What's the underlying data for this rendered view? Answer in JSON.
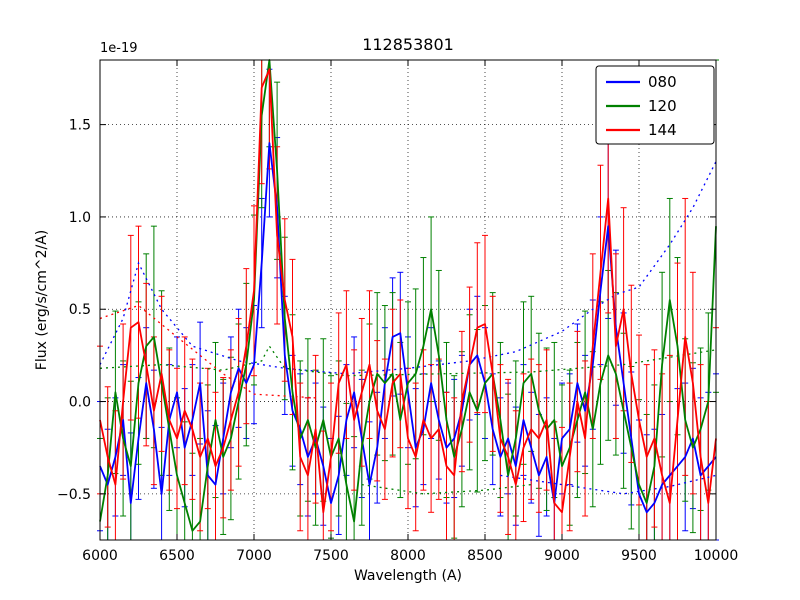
{
  "chart_data": {
    "type": "line",
    "title": "112853801",
    "xlabel": "Wavelength (A)",
    "ylabel": "Flux (erg/s/cm^2/A)",
    "y_offset_text": "1e-19",
    "xlim": [
      6000,
      10000
    ],
    "ylim": [
      -0.75,
      1.85
    ],
    "x_ticks": [
      6000,
      6500,
      7000,
      7500,
      8000,
      8500,
      9000,
      9500,
      10000
    ],
    "y_ticks": [
      -0.5,
      0.0,
      0.5,
      1.0,
      1.5
    ],
    "y_tick_labels": [
      "−0.5",
      "0.0",
      "0.5",
      "1.0",
      "1.5"
    ],
    "grid": true,
    "legend_position": "upper right",
    "x_start": 6000,
    "x_step": 50,
    "series": [
      {
        "name": "080",
        "color": "#0000ff",
        "values": [
          -0.35,
          -0.45,
          -0.3,
          -0.1,
          -0.55,
          -0.2,
          0.1,
          -0.15,
          -0.5,
          -0.1,
          0.05,
          -0.25,
          -0.1,
          0.1,
          -0.4,
          -0.45,
          -0.2,
          0.05,
          0.18,
          0.1,
          0.2,
          0.75,
          1.4,
          1.05,
          0.25,
          -0.05,
          -0.15,
          -0.3,
          -0.2,
          -0.35,
          -0.55,
          -0.4,
          -0.1,
          0.05,
          -0.2,
          -0.45,
          -0.25,
          0.1,
          0.35,
          0.37,
          0.05,
          -0.25,
          -0.15,
          0.1,
          -0.1,
          -0.25,
          -0.2,
          -0.05,
          0.2,
          0.25,
          0.1,
          -0.15,
          -0.3,
          -0.2,
          -0.35,
          -0.1,
          -0.25,
          -0.4,
          -0.3,
          -0.55,
          -0.2,
          -0.15,
          0.1,
          -0.05,
          0.2,
          0.6,
          0.95,
          0.4,
          0.1,
          -0.2,
          -0.5,
          -0.6,
          -0.55,
          -0.45,
          -0.4,
          -0.35,
          -0.3,
          -0.2,
          -0.4,
          -0.35,
          -0.3
        ],
        "err": [
          0.35,
          0.3,
          0.32,
          0.3,
          0.38,
          0.33,
          0.3,
          0.32,
          0.36,
          0.3,
          0.3,
          0.32,
          0.3,
          0.33,
          0.35,
          0.32,
          0.3,
          0.3,
          0.32,
          0.3,
          0.32,
          0.35,
          0.4,
          0.38,
          0.32,
          0.3,
          0.3,
          0.32,
          0.3,
          0.32,
          0.35,
          0.32,
          0.3,
          0.3,
          0.32,
          0.34,
          0.3,
          0.3,
          0.32,
          0.33,
          0.3,
          0.32,
          0.3,
          0.3,
          0.32,
          0.3,
          0.32,
          0.3,
          0.3,
          0.32,
          0.3,
          0.3,
          0.32,
          0.3,
          0.32,
          0.3,
          0.3,
          0.33,
          0.32,
          0.35,
          0.3,
          0.3,
          0.32,
          0.3,
          0.35,
          0.4,
          0.5,
          0.42,
          0.38,
          0.36,
          0.4,
          0.42,
          0.4,
          0.38,
          0.4,
          0.42,
          0.4,
          0.38,
          0.42,
          0.4,
          0.45
        ]
      },
      {
        "name": "120",
        "color": "#008000",
        "values": [
          -0.65,
          -0.4,
          0.05,
          -0.2,
          -0.35,
          0.1,
          0.3,
          0.35,
          0.1,
          -0.15,
          -0.4,
          -0.55,
          -0.7,
          -0.65,
          -0.35,
          -0.1,
          -0.3,
          -0.2,
          0.0,
          0.2,
          0.55,
          1.55,
          1.9,
          1.25,
          0.45,
          0.05,
          -0.2,
          -0.1,
          -0.25,
          -0.1,
          -0.3,
          -0.2,
          -0.45,
          -0.65,
          -0.25,
          0.0,
          0.15,
          0.1,
          0.15,
          -0.1,
          0.1,
          0.15,
          0.3,
          0.5,
          0.25,
          -0.1,
          -0.3,
          -0.15,
          0.05,
          -0.05,
          0.1,
          0.15,
          -0.1,
          -0.4,
          -0.2,
          0.1,
          0.15,
          -0.05,
          -0.15,
          -0.1,
          -0.35,
          -0.25,
          -0.1,
          0.05,
          -0.15,
          0.1,
          0.25,
          0.15,
          -0.05,
          -0.25,
          -0.45,
          -0.55,
          -0.35,
          0.2,
          0.55,
          0.3,
          -0.1,
          -0.25,
          -0.15,
          0.0,
          0.95
        ],
        "err": [
          0.45,
          0.42,
          0.44,
          0.42,
          0.46,
          0.44,
          0.5,
          0.6,
          0.5,
          0.44,
          0.42,
          0.44,
          0.42,
          0.45,
          0.44,
          0.42,
          0.42,
          0.44,
          0.42,
          0.44,
          0.46,
          0.5,
          0.52,
          0.48,
          0.44,
          0.42,
          0.42,
          0.44,
          0.42,
          0.44,
          0.44,
          0.42,
          0.44,
          0.46,
          0.42,
          0.42,
          0.44,
          0.42,
          0.44,
          0.42,
          0.44,
          0.46,
          0.48,
          0.5,
          0.46,
          0.42,
          0.44,
          0.42,
          0.42,
          0.44,
          0.42,
          0.44,
          0.42,
          0.44,
          0.42,
          0.44,
          0.42,
          0.42,
          0.44,
          0.42,
          0.44,
          0.42,
          0.42,
          0.44,
          0.42,
          0.44,
          0.46,
          0.44,
          0.42,
          0.44,
          0.46,
          0.48,
          0.44,
          0.5,
          0.55,
          0.48,
          0.44,
          0.46,
          0.44,
          0.48,
          0.9
        ]
      },
      {
        "name": "144",
        "color": "#ff0000",
        "values": [
          -0.1,
          -0.3,
          -0.45,
          0.0,
          0.4,
          0.43,
          0.2,
          -0.05,
          0.15,
          -0.1,
          -0.2,
          -0.05,
          -0.15,
          -0.3,
          -0.2,
          -0.35,
          -0.25,
          -0.1,
          0.05,
          0.3,
          0.6,
          1.7,
          1.8,
          0.9,
          0.55,
          0.35,
          -0.3,
          -0.4,
          -0.15,
          -0.6,
          -0.3,
          0.1,
          0.2,
          -0.1,
          0.05,
          0.2,
          -0.05,
          -0.15,
          0.1,
          0.15,
          -0.2,
          -0.3,
          -0.1,
          -0.2,
          -0.15,
          -0.35,
          -0.4,
          0.0,
          0.2,
          0.4,
          0.42,
          0.15,
          -0.2,
          -0.3,
          -0.45,
          -0.25,
          -0.15,
          -0.2,
          -0.1,
          -0.55,
          -0.6,
          -0.3,
          0.0,
          -0.2,
          0.3,
          0.7,
          1.1,
          0.3,
          0.5,
          0.15,
          -0.1,
          -0.3,
          -0.2,
          -0.4,
          -0.55,
          -0.1,
          0.35,
          0.1,
          -0.3,
          -0.55,
          -0.2
        ],
        "err": [
          0.4,
          0.38,
          0.4,
          0.42,
          0.5,
          0.52,
          0.44,
          0.4,
          0.42,
          0.38,
          0.38,
          0.4,
          0.38,
          0.4,
          0.38,
          0.4,
          0.38,
          0.38,
          0.4,
          0.42,
          0.46,
          0.52,
          0.54,
          0.48,
          0.44,
          0.42,
          0.4,
          0.42,
          0.4,
          0.44,
          0.4,
          0.38,
          0.4,
          0.38,
          0.4,
          0.4,
          0.38,
          0.38,
          0.4,
          0.4,
          0.38,
          0.4,
          0.38,
          0.4,
          0.38,
          0.4,
          0.42,
          0.38,
          0.42,
          0.46,
          0.48,
          0.42,
          0.4,
          0.42,
          0.4,
          0.4,
          0.38,
          0.4,
          0.38,
          0.44,
          0.46,
          0.4,
          0.38,
          0.42,
          0.5,
          0.58,
          0.62,
          0.5,
          0.55,
          0.48,
          0.46,
          0.5,
          0.48,
          0.55,
          0.8,
          0.85,
          0.75,
          0.6,
          0.5,
          0.55,
          0.6
        ]
      }
    ],
    "dotted_curves": [
      {
        "color": "#0000ff",
        "points": [
          [
            6000,
            0.2
          ],
          [
            6150,
            0.45
          ],
          [
            6250,
            0.75
          ],
          [
            6400,
            0.5
          ],
          [
            6600,
            0.3
          ],
          [
            6900,
            0.22
          ],
          [
            7200,
            0.18
          ],
          [
            7600,
            0.15
          ],
          [
            8000,
            0.18
          ],
          [
            8400,
            0.22
          ],
          [
            8700,
            0.27
          ],
          [
            9000,
            0.38
          ],
          [
            9200,
            0.5
          ],
          [
            9350,
            0.58
          ],
          [
            9500,
            0.62
          ],
          [
            9700,
            0.85
          ],
          [
            9850,
            1.05
          ],
          [
            10000,
            1.3
          ]
        ]
      },
      {
        "color": "#0000ff",
        "points": [
          [
            8600,
            -0.4
          ],
          [
            9000,
            -0.45
          ],
          [
            9400,
            -0.5
          ],
          [
            9700,
            -0.46
          ],
          [
            10000,
            -0.4
          ]
        ]
      },
      {
        "color": "#008000",
        "points": [
          [
            6000,
            0.18
          ],
          [
            6400,
            0.2
          ],
          [
            6800,
            0.17
          ],
          [
            7050,
            0.22
          ],
          [
            7100,
            0.3
          ],
          [
            7200,
            0.18
          ],
          [
            7600,
            0.14
          ],
          [
            8200,
            0.15
          ],
          [
            8800,
            0.16
          ],
          [
            9400,
            0.2
          ],
          [
            10000,
            0.28
          ]
        ]
      },
      {
        "color": "#008000",
        "points": [
          [
            7700,
            -0.45
          ],
          [
            8100,
            -0.5
          ],
          [
            8500,
            -0.48
          ],
          [
            8800,
            -0.45
          ]
        ]
      },
      {
        "color": "#ff0000",
        "points": [
          [
            6000,
            0.45
          ],
          [
            6250,
            0.52
          ],
          [
            6500,
            0.35
          ],
          [
            6800,
            0.15
          ],
          [
            7000,
            0.04
          ],
          [
            7400,
            0.02
          ]
        ]
      }
    ]
  }
}
